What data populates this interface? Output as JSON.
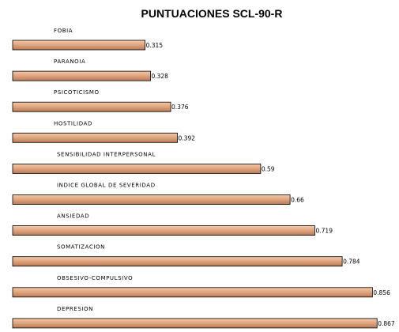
{
  "chart_data": {
    "type": "bar",
    "orientation": "horizontal",
    "title": "PUNTUACIONES SCL-90-R",
    "xlabel": "",
    "ylabel": "",
    "categories": [
      "FOBIA",
      "PARANOIA",
      "PSICOTICISMO",
      "HOSTILIDAD",
      "SENSIBILIDAD INTERPERSONAL",
      "INDICE GLOBAL DE SEVERIDAD",
      "ANSIEDAD",
      "SOMATIZACION",
      "OBSESIVO-COMPULSIVO",
      "DEPRESION"
    ],
    "values": [
      0.315,
      0.328,
      0.376,
      0.392,
      0.59,
      0.66,
      0.719,
      0.784,
      0.856,
      0.867
    ],
    "value_labels": [
      "0.315",
      "0.328",
      "0.376",
      "0.392",
      "0.59",
      "0.66",
      "0.719",
      "0.784",
      "0.856",
      "0.867"
    ],
    "xlim": [
      0,
      0.9
    ],
    "grid": false,
    "legend": "none",
    "bar_color_light": "#f5c9a8",
    "bar_color_mid": "#e0a882",
    "bar_color_dark": "#b87a55"
  }
}
